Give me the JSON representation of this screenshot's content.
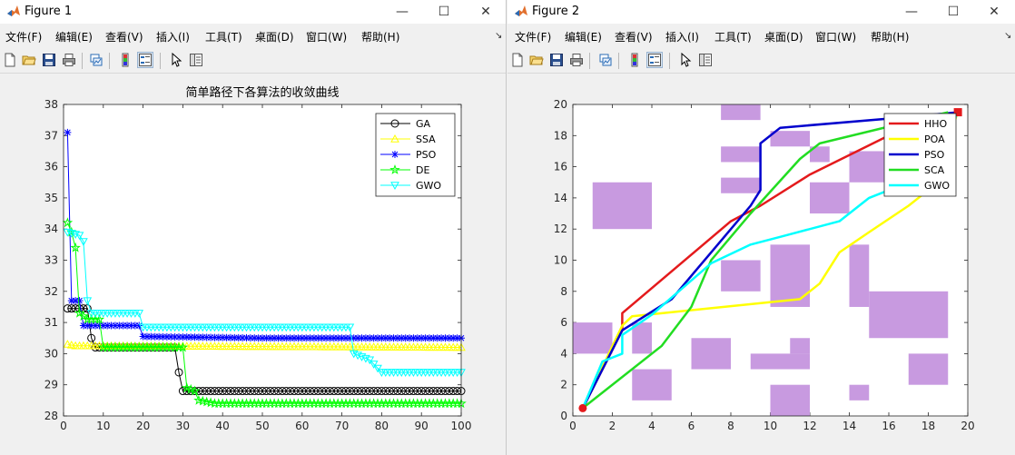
{
  "window1": {
    "title": "Figure 1",
    "menu": [
      "文件(F)",
      "编辑(E)",
      "查看(V)",
      "插入(I)",
      "工具(T)",
      "桌面(D)",
      "窗口(W)",
      "帮助(H)"
    ],
    "menu_overflow": "↘",
    "controls": {
      "minimize": "—",
      "maximize": "☐",
      "close": "✕"
    }
  },
  "window2": {
    "title": "Figure 2",
    "menu": [
      "文件(F)",
      "编辑(E)",
      "查看(V)",
      "插入(I)",
      "工具(T)",
      "桌面(D)",
      "窗口(W)",
      "帮助(H)"
    ],
    "menu_overflow": "↘",
    "controls": {
      "minimize": "—",
      "maximize": "☐",
      "close": "✕"
    }
  },
  "toolbar_icons": [
    "new-figure-icon",
    "open-file-icon",
    "save-icon",
    "print-icon",
    "link-plot-icon",
    "colorbar-icon",
    "legend-icon",
    "pointer-icon",
    "property-editor-icon"
  ],
  "chart_data": [
    {
      "type": "line",
      "title": "简单路径下各算法的收敛曲线",
      "xlim": [
        0,
        100
      ],
      "ylim": [
        28,
        38
      ],
      "xticks": [
        0,
        10,
        20,
        30,
        40,
        50,
        60,
        70,
        80,
        90,
        100
      ],
      "yticks": [
        28,
        29,
        30,
        31,
        32,
        33,
        34,
        35,
        36,
        37,
        38
      ],
      "legend_position": "top-right",
      "grid": false,
      "series": [
        {
          "name": "GA",
          "color": "#000000",
          "marker": "circle",
          "points": [
            [
              1,
              31.45
            ],
            [
              6,
              31.45
            ],
            [
              7,
              30.5
            ],
            [
              8,
              30.2
            ],
            [
              28,
              30.2
            ],
            [
              29,
              29.4
            ],
            [
              30,
              28.8
            ],
            [
              100,
              28.8
            ]
          ]
        },
        {
          "name": "SSA",
          "color": "#ffff00",
          "marker": "triangle-up",
          "points": [
            [
              1,
              30.3
            ],
            [
              3,
              30.25
            ],
            [
              10,
              30.25
            ],
            [
              100,
              30.2
            ]
          ]
        },
        {
          "name": "PSO",
          "color": "#0000ff",
          "marker": "star",
          "points": [
            [
              1,
              37.1
            ],
            [
              2,
              31.7
            ],
            [
              4,
              31.7
            ],
            [
              5,
              30.9
            ],
            [
              19,
              30.9
            ],
            [
              20,
              30.55
            ],
            [
              50,
              30.5
            ],
            [
              100,
              30.5
            ]
          ]
        },
        {
          "name": "DE",
          "color": "#00ff00",
          "marker": "pentagram",
          "points": [
            [
              1,
              34.2
            ],
            [
              2,
              33.9
            ],
            [
              3,
              33.4
            ],
            [
              4,
              31.3
            ],
            [
              6,
              31.1
            ],
            [
              9,
              31.1
            ],
            [
              10,
              30.2
            ],
            [
              30,
              30.2
            ],
            [
              31,
              28.9
            ],
            [
              33,
              28.8
            ],
            [
              34,
              28.5
            ],
            [
              38,
              28.4
            ],
            [
              100,
              28.4
            ]
          ]
        },
        {
          "name": "GWO",
          "color": "#00ffff",
          "marker": "triangle-down",
          "points": [
            [
              1,
              33.9
            ],
            [
              4,
              33.8
            ],
            [
              5,
              33.6
            ],
            [
              6,
              31.7
            ],
            [
              7,
              31.3
            ],
            [
              19,
              31.3
            ],
            [
              20,
              30.85
            ],
            [
              72,
              30.85
            ],
            [
              73,
              30.0
            ],
            [
              77,
              29.8
            ],
            [
              80,
              29.4
            ],
            [
              100,
              29.4
            ]
          ]
        }
      ]
    },
    {
      "type": "line",
      "xlim": [
        0,
        20
      ],
      "ylim": [
        0,
        20
      ],
      "xticks": [
        0,
        2,
        4,
        6,
        8,
        10,
        12,
        14,
        16,
        18,
        20
      ],
      "yticks": [
        0,
        2,
        4,
        6,
        8,
        10,
        12,
        14,
        16,
        18,
        20
      ],
      "legend_position": "top-right",
      "grid": false,
      "obstacle_color": "#c89ae0",
      "obstacles": [
        [
          7.5,
          19,
          9.5,
          20
        ],
        [
          7.5,
          16.3,
          9.5,
          17.3
        ],
        [
          7.5,
          14.3,
          9.5,
          15.3
        ],
        [
          10,
          17.3,
          12,
          18.3
        ],
        [
          12,
          16.3,
          13,
          17.3
        ],
        [
          1,
          12,
          4,
          15
        ],
        [
          12,
          13,
          14,
          15
        ],
        [
          14,
          15,
          16,
          17
        ],
        [
          7.5,
          8,
          9.5,
          10
        ],
        [
          10,
          7,
          12,
          11
        ],
        [
          14,
          7,
          15,
          11
        ],
        [
          0,
          4,
          2,
          6
        ],
        [
          3,
          4,
          4,
          6
        ],
        [
          6,
          3,
          8,
          5
        ],
        [
          9,
          3,
          12,
          4
        ],
        [
          11,
          4,
          12,
          5
        ],
        [
          15,
          5,
          19,
          8
        ],
        [
          17,
          2,
          19,
          4
        ],
        [
          3,
          1,
          5,
          3
        ],
        [
          10,
          0,
          12,
          2
        ],
        [
          14,
          1,
          15,
          2
        ]
      ],
      "start": [
        0.5,
        0.5
      ],
      "goal": [
        19.5,
        19.5
      ],
      "series": [
        {
          "name": "HHO",
          "color": "#e41a1c",
          "points": [
            [
              0.5,
              0.5
            ],
            [
              2.5,
              5.5
            ],
            [
              2.5,
              6.6
            ],
            [
              8,
              12.5
            ],
            [
              9.5,
              13.5
            ],
            [
              12,
              15.5
            ],
            [
              16,
              18
            ],
            [
              19.5,
              19.5
            ]
          ]
        },
        {
          "name": "POA",
          "color": "#ffff00",
          "points": [
            [
              0.5,
              0.5
            ],
            [
              2.5,
              5.8
            ],
            [
              3,
              6.4
            ],
            [
              11.5,
              7.5
            ],
            [
              12.5,
              8.5
            ],
            [
              13.5,
              10.5
            ],
            [
              15,
              11.8
            ],
            [
              17,
              13.5
            ],
            [
              18,
              14.5
            ],
            [
              19.5,
              19.5
            ]
          ]
        },
        {
          "name": "PSO",
          "color": "#0000cd",
          "points": [
            [
              0.5,
              0.5
            ],
            [
              2.5,
              5.5
            ],
            [
              5,
              7.5
            ],
            [
              7,
              10.5
            ],
            [
              9,
              13.5
            ],
            [
              9.5,
              14.5
            ],
            [
              9.5,
              17.5
            ],
            [
              10.5,
              18.5
            ],
            [
              17,
              19.2
            ],
            [
              19.5,
              19.5
            ]
          ]
        },
        {
          "name": "SCA",
          "color": "#22dd22",
          "points": [
            [
              0.5,
              0.5
            ],
            [
              4.5,
              4.5
            ],
            [
              6,
              7
            ],
            [
              7,
              10
            ],
            [
              9,
              13
            ],
            [
              11.5,
              16.5
            ],
            [
              12.5,
              17.5
            ],
            [
              19,
              19.5
            ]
          ]
        },
        {
          "name": "GWO",
          "color": "#00ffff",
          "points": [
            [
              0.5,
              0.5
            ],
            [
              1.5,
              3.5
            ],
            [
              2.5,
              4
            ],
            [
              2.5,
              5.2
            ],
            [
              4,
              6.5
            ],
            [
              7,
              9.8
            ],
            [
              9,
              11
            ],
            [
              10.5,
              11.5
            ],
            [
              13.5,
              12.5
            ],
            [
              15,
              14
            ],
            [
              18,
              15.5
            ],
            [
              19.5,
              19.5
            ]
          ]
        }
      ]
    }
  ]
}
